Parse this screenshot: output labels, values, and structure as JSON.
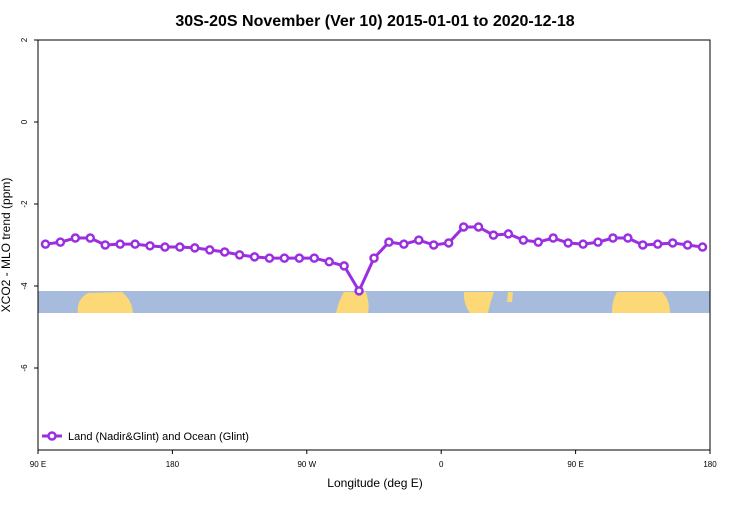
{
  "chart_data": {
    "type": "line",
    "title": "30S-20S November (Ver 10)   2015-01-01 to 2020-12-18",
    "x_label": "Longitude (deg E)",
    "y_label": "XCO2 - MLO trend (ppm)",
    "xlim": [
      90,
      540
    ],
    "xticks": [
      {
        "value": 90,
        "label": "90 E"
      },
      180,
      {
        "value": 270,
        "label": "90 W"
      },
      {
        "value": 360,
        "label": "0"
      },
      {
        "value": 450,
        "label": "90 E"
      },
      {
        "value": 540,
        "label": "180"
      }
    ],
    "ylim": [
      -8,
      2
    ],
    "yticks": [
      2,
      0,
      -2,
      -4,
      -6
    ],
    "legend": "bottom-left",
    "x": [
      95,
      105,
      115,
      125,
      135,
      145,
      155,
      165,
      175,
      185,
      195,
      205,
      215,
      225,
      235,
      245,
      255,
      265,
      275,
      285,
      295,
      305,
      315,
      325,
      335,
      345,
      355,
      365,
      375,
      385,
      395,
      405,
      415,
      425,
      435,
      445,
      455,
      465,
      475,
      485,
      495,
      505,
      515,
      525,
      535
    ],
    "series": [
      {
        "name": "Land (Nadir&Glint) and Ocean (Glint)",
        "color": "#9b2fe0",
        "values": [
          -2.98,
          -2.93,
          -2.83,
          -2.83,
          -3.0,
          -2.98,
          -2.98,
          -3.02,
          -3.05,
          -3.05,
          -3.07,
          -3.12,
          -3.17,
          -3.24,
          -3.29,
          -3.32,
          -3.32,
          -3.32,
          -3.32,
          -3.41,
          -3.51,
          -4.12,
          -3.32,
          -2.93,
          -2.98,
          -2.88,
          -3.0,
          -2.95,
          -2.56,
          -2.56,
          -2.76,
          -2.73,
          -2.88,
          -2.93,
          -2.83,
          -2.95,
          -2.98,
          -2.93,
          -2.83,
          -2.83,
          -3.0,
          -2.98,
          -2.95,
          -3.0,
          -3.05
        ]
      }
    ]
  }
}
